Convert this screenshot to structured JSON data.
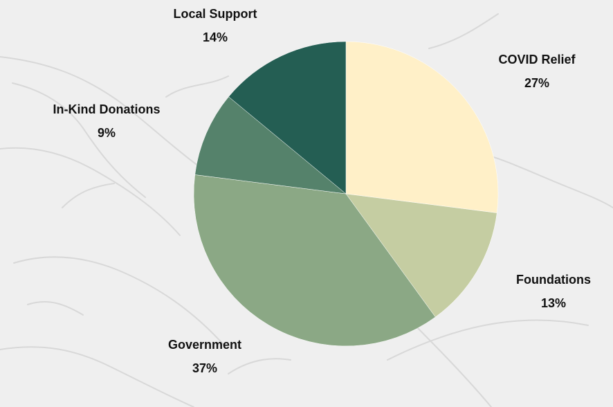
{
  "chart_data": {
    "type": "pie",
    "categories": [
      "COVID Relief",
      "Foundations",
      "Government",
      "In-Kind Donations",
      "Local Support"
    ],
    "values": [
      27,
      13,
      37,
      9,
      14
    ],
    "value_labels": [
      "27%",
      "13%",
      "37%",
      "9%",
      "14%"
    ],
    "colors": [
      "#fff0c8",
      "#c5cda2",
      "#8ba885",
      "#55826b",
      "#245e53"
    ],
    "start_angle_deg": 0,
    "direction": "clockwise",
    "legend": "none"
  },
  "colors": {
    "background": "#efefef",
    "slice_edge": "#ffffff",
    "label_text": "#111111",
    "background_art": "#d8d8d8"
  }
}
